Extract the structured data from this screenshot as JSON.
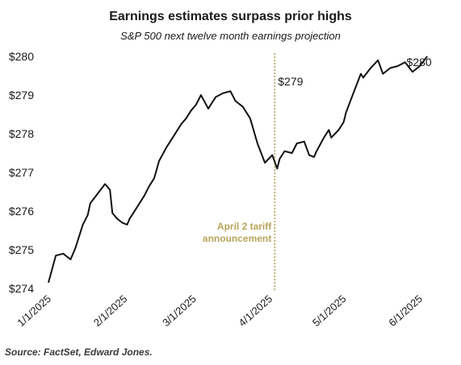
{
  "chart_data": {
    "type": "line",
    "title": "Earnings estimates surpass prior highs",
    "subtitle": "S&P 500 next twelve month earnings projection",
    "xlabel": "",
    "ylabel": "",
    "ylim": [
      274,
      280
    ],
    "y_ticks": [
      "$274",
      "$275",
      "$276",
      "$277",
      "$278",
      "$279",
      "$280"
    ],
    "y_tick_values": [
      274,
      275,
      276,
      277,
      278,
      279,
      280
    ],
    "x_ticks": [
      "1/1/2025",
      "2/1/2025",
      "3/1/2025",
      "4/1/2025",
      "5/1/2025",
      "6/1/2025"
    ],
    "x_tick_values": [
      "2025-01-01",
      "2025-02-01",
      "2025-03-01",
      "2025-04-01",
      "2025-05-01",
      "2025-06-01"
    ],
    "grid": false,
    "line_color": "#111111",
    "annotation": {
      "x": "2025-04-03",
      "text_line1": "April 2 tariff",
      "text_line2": "announcement",
      "color": "#b8a45a"
    },
    "labels": {
      "peak": "$279",
      "end": "$280"
    },
    "series": [
      {
        "x": [
          "2025-01-01",
          "2025-01-04",
          "2025-01-07",
          "2025-01-10",
          "2025-01-12",
          "2025-01-15",
          "2025-01-17",
          "2025-01-18",
          "2025-01-21",
          "2025-01-24",
          "2025-01-26",
          "2025-01-27",
          "2025-01-29",
          "2025-01-31",
          "2025-02-02",
          "2025-02-03",
          "2025-02-04",
          "2025-02-06",
          "2025-02-09",
          "2025-02-11",
          "2025-02-13",
          "2025-02-15",
          "2025-02-18",
          "2025-02-21",
          "2025-02-24",
          "2025-02-26",
          "2025-02-28",
          "2025-03-02",
          "2025-03-04",
          "2025-03-07",
          "2025-03-10",
          "2025-03-13",
          "2025-03-16",
          "2025-03-18",
          "2025-03-21",
          "2025-03-24",
          "2025-03-27",
          "2025-03-30",
          "2025-04-02",
          "2025-04-04",
          "2025-04-05",
          "2025-04-07",
          "2025-04-10",
          "2025-04-12",
          "2025-04-15",
          "2025-04-17",
          "2025-04-19",
          "2025-04-20",
          "2025-04-23",
          "2025-04-25",
          "2025-04-26",
          "2025-04-29",
          "2025-05-01",
          "2025-05-02",
          "2025-05-05",
          "2025-05-08",
          "2025-05-09",
          "2025-05-12",
          "2025-05-15",
          "2025-05-17",
          "2025-05-20",
          "2025-05-23",
          "2025-05-26",
          "2025-05-29",
          "2025-06-01",
          "2025-06-04"
        ],
        "y": [
          274.15,
          274.85,
          274.9,
          274.75,
          275.05,
          275.65,
          275.9,
          276.2,
          276.45,
          276.7,
          276.55,
          275.95,
          275.8,
          275.7,
          275.65,
          275.8,
          275.9,
          276.1,
          276.4,
          276.65,
          276.85,
          277.3,
          277.65,
          277.95,
          278.25,
          278.4,
          278.6,
          278.75,
          279.0,
          278.65,
          278.95,
          279.05,
          279.1,
          278.85,
          278.7,
          278.4,
          277.75,
          277.25,
          277.45,
          277.1,
          277.35,
          277.55,
          277.5,
          277.75,
          277.8,
          277.45,
          277.4,
          277.55,
          277.9,
          278.1,
          277.9,
          278.1,
          278.3,
          278.55,
          279.05,
          279.55,
          279.45,
          279.7,
          279.9,
          279.55,
          279.7,
          279.75,
          279.85,
          279.6,
          279.75,
          280.0
        ]
      }
    ]
  },
  "source": "Source: FactSet, Edward Jones."
}
